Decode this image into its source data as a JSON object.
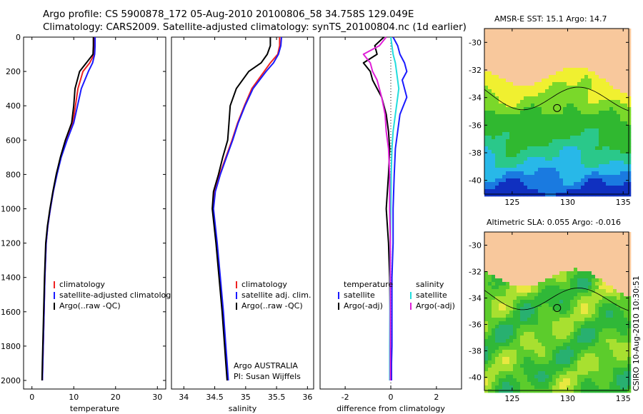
{
  "title_line1": "Argo profile: CS 5900878_172 05-Aug-2010 20100806_58 34.758S 129.049E",
  "title_line2": "Climatology: CARS2009. Satellite-adjusted climatology: synTS_20100804.nc (1d earlier)",
  "vertical_credit": "CSIRO 10-Aug-2010 10:30:51",
  "colors": {
    "climatology": "#ee2222",
    "satellite": "#1a1aff",
    "argo": "#000000",
    "salinity_satellite": "#22dddd",
    "salinity_argo": "#e020d8",
    "land": "#f8c89c"
  },
  "chart_data": [
    {
      "type": "line",
      "xlabel": "temperature",
      "ylabel": "",
      "xlim": [
        -2,
        32
      ],
      "ylim": [
        2050,
        0
      ],
      "xticks": [
        0,
        10,
        20,
        30
      ],
      "yticks": [
        0,
        200,
        400,
        600,
        800,
        1000,
        1200,
        1400,
        1600,
        1800,
        2000
      ],
      "legend": [
        "climatology",
        "satellite-adjusted climatology",
        "Argo(..raw -QC)"
      ],
      "legend_position": "lower-right",
      "series": [
        {
          "name": "climatology",
          "color": "#ee2222",
          "x": [
            15.0,
            15.0,
            14.9,
            13.8,
            12.2,
            11.0,
            10.4,
            9.8,
            8.2,
            6.9,
            5.9,
            5.1,
            4.4,
            3.8,
            3.4,
            3.1,
            2.9,
            2.7,
            2.6,
            2.5
          ],
          "y": [
            0,
            50,
            100,
            150,
            200,
            300,
            400,
            500,
            600,
            700,
            800,
            900,
            1000,
            1100,
            1200,
            1400,
            1600,
            1800,
            1900,
            2000
          ]
        },
        {
          "name": "satellite-adjusted climatology",
          "color": "#1a1aff",
          "x": [
            15.1,
            15.1,
            15.0,
            14.5,
            13.5,
            11.8,
            10.9,
            10.0,
            8.4,
            7.0,
            6.0,
            5.1,
            4.4,
            3.8,
            3.4,
            3.1,
            2.9,
            2.7,
            2.6,
            2.5
          ],
          "y": [
            0,
            50,
            100,
            150,
            200,
            300,
            400,
            500,
            600,
            700,
            800,
            900,
            1000,
            1100,
            1200,
            1400,
            1600,
            1800,
            1900,
            2000
          ]
        },
        {
          "name": "Argo(..raw -QC)",
          "color": "#000000",
          "x": [
            14.7,
            14.7,
            14.6,
            13.0,
            11.4,
            10.3,
            10.0,
            9.5,
            8.0,
            6.8,
            5.8,
            5.0,
            4.3,
            3.7,
            3.3,
            3.0,
            2.8,
            2.6,
            2.5,
            2.4
          ],
          "y": [
            0,
            50,
            100,
            150,
            200,
            300,
            400,
            500,
            600,
            700,
            800,
            900,
            1000,
            1100,
            1200,
            1400,
            1600,
            1800,
            1900,
            2000
          ]
        }
      ]
    },
    {
      "type": "line",
      "xlabel": "salinity",
      "ylabel": "",
      "xlim": [
        33.8,
        36.1
      ],
      "ylim": [
        2050,
        0
      ],
      "xticks": [
        34,
        34.5,
        35,
        35.5,
        36
      ],
      "xtick_labels": [
        "34",
        "34.5",
        "35",
        "35.5",
        "36"
      ],
      "legend": [
        "climatology",
        "satellite adj. clim.",
        "Argo(..raw -QC)"
      ],
      "legend_position": "lower-right",
      "annotation": [
        "Argo AUSTRALIA",
        "PI: Susan Wijffels"
      ],
      "series": [
        {
          "name": "climatology",
          "color": "#ee2222",
          "x": [
            35.55,
            35.55,
            35.52,
            35.4,
            35.3,
            35.1,
            34.98,
            34.87,
            34.78,
            34.68,
            34.58,
            34.5,
            34.47,
            34.5,
            34.53,
            34.58,
            34.63,
            34.67,
            34.69,
            34.71
          ],
          "y": [
            0,
            50,
            100,
            150,
            200,
            300,
            400,
            500,
            600,
            700,
            800,
            900,
            1000,
            1100,
            1200,
            1400,
            1600,
            1800,
            1900,
            2000
          ]
        },
        {
          "name": "satellite adj. clim.",
          "color": "#1a1aff",
          "x": [
            35.58,
            35.57,
            35.53,
            35.45,
            35.33,
            35.12,
            34.99,
            34.88,
            34.79,
            34.69,
            34.59,
            34.51,
            34.48,
            34.51,
            34.54,
            34.59,
            34.64,
            34.68,
            34.7,
            34.72
          ],
          "y": [
            0,
            50,
            100,
            150,
            200,
            300,
            400,
            500,
            600,
            700,
            800,
            900,
            1000,
            1100,
            1200,
            1400,
            1600,
            1800,
            1900,
            2000
          ]
        },
        {
          "name": "Argo(..raw -QC)",
          "color": "#000000",
          "x": [
            35.4,
            35.4,
            35.35,
            35.25,
            35.05,
            34.85,
            34.75,
            34.73,
            34.71,
            34.63,
            34.56,
            34.48,
            34.46,
            34.49,
            34.52,
            34.57,
            34.62,
            34.66,
            34.68,
            34.7
          ],
          "y": [
            0,
            50,
            100,
            150,
            200,
            300,
            400,
            500,
            600,
            700,
            800,
            900,
            1000,
            1100,
            1200,
            1400,
            1600,
            1800,
            1900,
            2000
          ]
        }
      ]
    },
    {
      "type": "line",
      "xlabel": "difference from climatology",
      "ylabel": "",
      "xlim": [
        -3.1,
        3.1
      ],
      "ylim": [
        2050,
        0
      ],
      "xticks": [
        -2,
        0,
        2
      ],
      "legend": [
        "temperature",
        "satellite",
        "Argo(-adj)",
        "salinity",
        "satellite",
        "Argo(-adj)"
      ],
      "legend_position": "lower-center",
      "series": [
        {
          "name": "temperature satellite",
          "color": "#1a1aff",
          "x": [
            0.1,
            0.3,
            0.4,
            0.6,
            0.7,
            0.5,
            0.6,
            0.7,
            0.4,
            0.3,
            0.2,
            0.15,
            0.1,
            0.1,
            0.05,
            0.05,
            0.05,
            0.03,
            0.03
          ],
          "y": [
            0,
            50,
            100,
            150,
            200,
            250,
            300,
            350,
            450,
            550,
            650,
            800,
            1000,
            1200,
            1400,
            1600,
            1800,
            1900,
            2000
          ]
        },
        {
          "name": "temperature Argo(-adj)",
          "color": "#000000",
          "x": [
            -0.3,
            -0.7,
            -0.6,
            -1.2,
            -0.9,
            -0.8,
            -0.6,
            -0.4,
            -0.2,
            -0.1,
            -0.05,
            -0.1,
            -0.2,
            -0.1,
            -0.05,
            -0.03,
            -0.02,
            -0.02,
            -0.02
          ],
          "y": [
            0,
            50,
            100,
            150,
            200,
            250,
            300,
            350,
            450,
            550,
            650,
            800,
            1000,
            1200,
            1400,
            1600,
            1800,
            1900,
            2000
          ]
        },
        {
          "name": "salinity satellite",
          "color": "#22dddd",
          "x": [
            0.0,
            0.05,
            0.1,
            0.2,
            0.25,
            0.3,
            0.35,
            0.3,
            0.2,
            0.1,
            0.05,
            0.02,
            0.0,
            -0.02,
            -0.03,
            -0.04,
            -0.05,
            -0.05,
            -0.05
          ],
          "y": [
            0,
            50,
            100,
            150,
            200,
            250,
            300,
            350,
            450,
            550,
            650,
            800,
            1000,
            1200,
            1400,
            1600,
            1800,
            1900,
            2000
          ]
        },
        {
          "name": "salinity Argo(-adj)",
          "color": "#e020d8",
          "x": [
            -0.2,
            -0.5,
            -1.2,
            -0.9,
            -0.8,
            -0.6,
            -0.5,
            -0.4,
            -0.25,
            -0.2,
            -0.1,
            -0.05,
            -0.05,
            -0.02,
            -0.02,
            -0.02,
            -0.02,
            -0.02,
            -0.02
          ],
          "y": [
            0,
            50,
            100,
            150,
            200,
            250,
            300,
            350,
            450,
            550,
            650,
            800,
            1000,
            1200,
            1400,
            1600,
            1800,
            1900,
            2000
          ]
        }
      ]
    },
    {
      "type": "heatmap",
      "title": "AMSR-E SST: 15.1  Argo: 14.7",
      "xlim": [
        122.5,
        135.5
      ],
      "ylim": [
        -41,
        -29
      ],
      "xticks": [
        125,
        130,
        135
      ],
      "yticks": [
        -30,
        -32,
        -34,
        -36,
        -38,
        -40
      ],
      "profile_location": [
        129.049,
        -34.758
      ]
    },
    {
      "type": "heatmap",
      "title": "Altimetric SLA: 0.055  Argo: -0.016",
      "xlim": [
        122.5,
        135.5
      ],
      "ylim": [
        -41,
        -29
      ],
      "xticks": [
        125,
        130,
        135
      ],
      "yticks": [
        -30,
        -32,
        -34,
        -36,
        -38,
        -40
      ],
      "profile_location": [
        129.049,
        -34.758
      ]
    }
  ]
}
